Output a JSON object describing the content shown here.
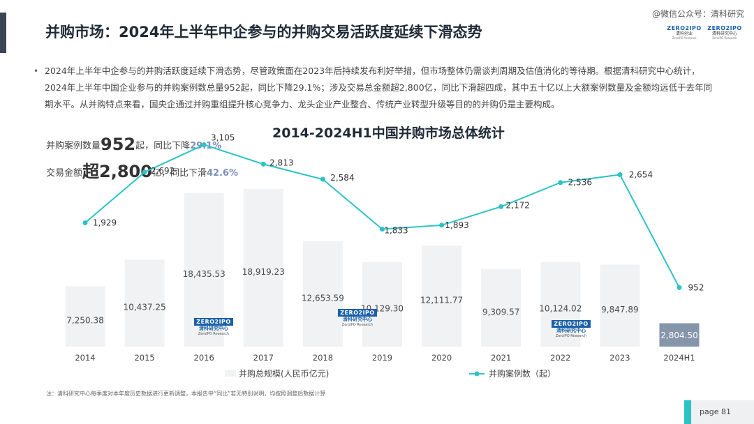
{
  "header": {
    "title": "并购市场：2024年上半年中企参与的并购交易活跃度延续下滑态势",
    "watermark": "@微信公众号：清科研究"
  },
  "logos": [
    {
      "main": "ZERO2IPO",
      "sub": "清科创业",
      "tiny": "ZeroIPO Ventures"
    },
    {
      "main": "ZERO2IPO",
      "sub": "清科研究中心",
      "tiny": "ZeroIPO Research"
    }
  ],
  "bullet": "2024年上半年中企参与的并购活跃度延续下滑态势，尽管政策面在2023年后持续发布利好举措，但市场整体仍需谈判周期及估值消化的等待期。根据清科研究中心统计，2024年上半年中国企业参与的并购案例数总量952起，同比下降29.1%；涉及交易总金额超2,800亿，同比下滑超四成，其中五十亿以上大额案例数量及金额均远低于去年同期水平。从并购特点来看，国央企通过并购重组提升核心竞争力、龙头企业产业整合、传统产业转型升级等目的的并购仍是主要构成。",
  "stats": {
    "s1_prefix": "并购案例数量",
    "s1_num": "952",
    "s1_unit": "起，同比",
    "s1_dir": "下降",
    "s1_pct": "29.1%",
    "s2_prefix": "交易金额",
    "s2_num": "超2,800",
    "s2_unit": "亿，同比",
    "s2_dir": "下滑",
    "s2_pct": "42.6%"
  },
  "watermark_logo": {
    "top": "ZERO2IPO",
    "cn": "清科研究中心",
    "en": "ZeroIPO Research"
  },
  "chart_data": {
    "type": "bar",
    "title": "2014-2024H1中国并购市场总体统计",
    "categories": [
      "2014",
      "2015",
      "2016",
      "2017",
      "2018",
      "2019",
      "2020",
      "2021",
      "2022",
      "2023",
      "2024H1"
    ],
    "series": [
      {
        "name": "并购总规模(人民币亿元)",
        "type": "bar",
        "values": [
          7250.38,
          10437.25,
          18435.53,
          18919.23,
          12653.59,
          10129.3,
          12111.77,
          9309.57,
          10124.02,
          9847.89,
          2804.5
        ],
        "labels": [
          "7,250.38",
          "10,437.25",
          "18,435.53",
          "18,919.23",
          "12,653.59",
          "10,129.30",
          "12,111.77",
          "9,309.57",
          "10,124.02",
          "9,847.89",
          "2,804.50"
        ],
        "color": "#f1f2f4",
        "highlight_color": "#8596ab"
      },
      {
        "name": "并购案例数（起）",
        "type": "line",
        "values": [
          1929,
          2692,
          3105,
          2813,
          2584,
          1833,
          1893,
          2172,
          2536,
          2654,
          952
        ],
        "labels": [
          "1,929",
          "2,692",
          "3,105",
          "2,813",
          "2,584",
          "1,833",
          "1,893",
          "2,172",
          "2,536",
          "2,654",
          "952"
        ],
        "color": "#2cc3c7"
      }
    ],
    "ylim_bar": [
      0,
      20000
    ],
    "ylim_line": [
      0,
      3500
    ],
    "legend_placement": "bottom",
    "grid": false
  },
  "footnote": "注：清科研究中心每季度对本年度历史数据进行更新调整，本报告中“同比”若无特别说明，均按照调整后数据计算",
  "page": "page  81"
}
